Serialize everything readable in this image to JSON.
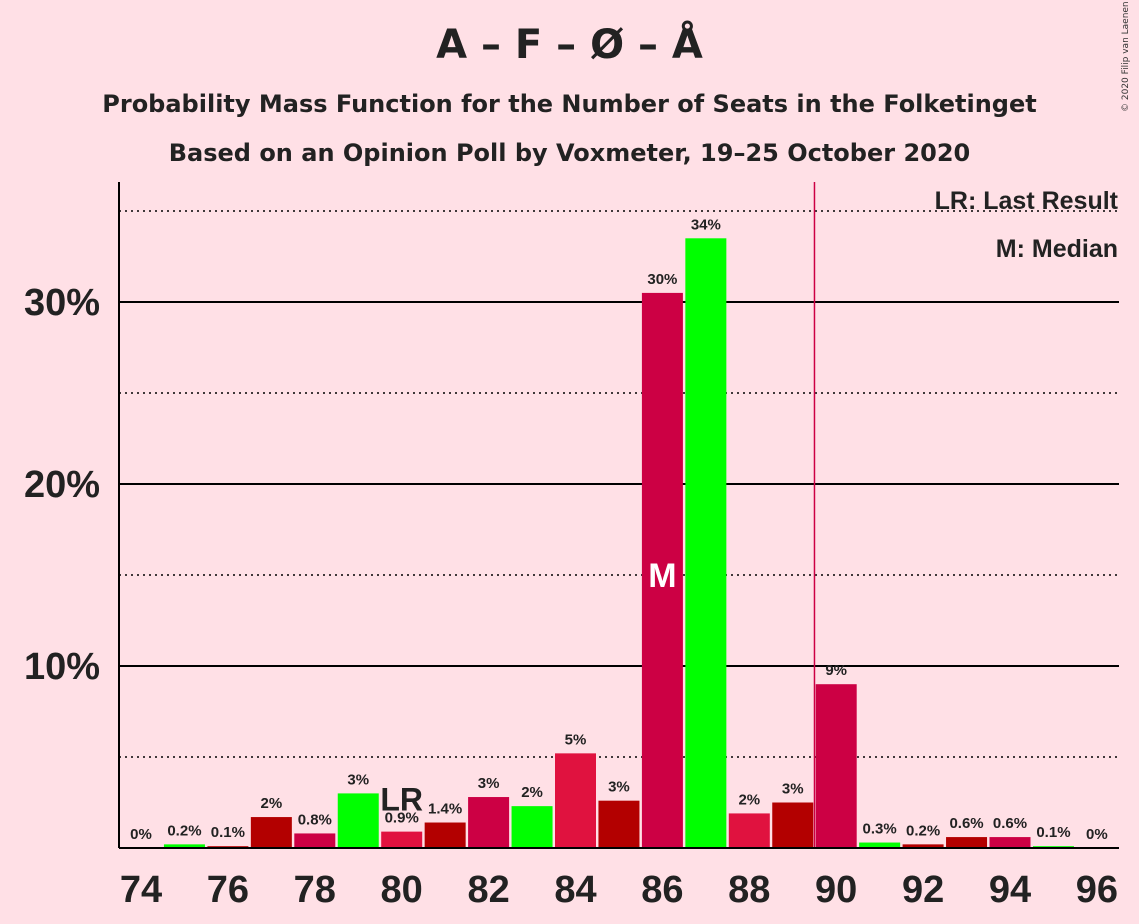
{
  "title": "A – F – Ø – Å",
  "subtitle": "Probability Mass Function for the Number of Seats in the Folketinget",
  "subtitle2": "Based on an Opinion Poll by Voxmeter, 19–25 October 2020",
  "copyright": "© 2020 Filip van Laenen",
  "legend": {
    "lr": "LR: Last Result",
    "m": "M: Median"
  },
  "markers": {
    "last_result_label": "LR",
    "median_label": "M"
  },
  "colors": {
    "background": "#ffe0e6",
    "A": "#cc0044",
    "F": "#00ff00",
    "O": "#b30000",
    "AA": "#e0123f",
    "majority_line": "#cc0044"
  },
  "chart_data": {
    "type": "bar",
    "x": [
      74,
      75,
      76,
      77,
      78,
      79,
      80,
      81,
      82,
      83,
      84,
      85,
      86,
      87,
      88,
      89,
      90,
      91,
      92,
      93,
      94,
      95,
      96
    ],
    "values": [
      0,
      0.2,
      0.1,
      1.7,
      0.8,
      3.0,
      0.9,
      1.4,
      2.8,
      2.3,
      5.2,
      2.6,
      30.5,
      33.5,
      1.9,
      2.5,
      9.0,
      0.3,
      0.2,
      0.6,
      0.6,
      0.1,
      0
    ],
    "labels": [
      "0%",
      "0.2%",
      "0.1%",
      "2%",
      "0.8%",
      "3%",
      "0.9%",
      "1.4%",
      "3%",
      "2%",
      "5%",
      "3%",
      "30%",
      "34%",
      "2%",
      "3%",
      "9%",
      "0.3%",
      "0.2%",
      "0.6%",
      "0.6%",
      "0.1%",
      "0%"
    ],
    "bar_colors": [
      "#cc0044",
      "#00ff00",
      "#b30000",
      "#b30000",
      "#cc0044",
      "#00ff00",
      "#e0123f",
      "#b30000",
      "#cc0044",
      "#00ff00",
      "#e0123f",
      "#b30000",
      "#cc0044",
      "#00ff00",
      "#e0123f",
      "#b30000",
      "#cc0044",
      "#00ff00",
      "#b30000",
      "#b30000",
      "#cc0044",
      "#00ff00",
      "#e0123f"
    ],
    "xticks": [
      "74",
      "76",
      "78",
      "80",
      "82",
      "84",
      "86",
      "88",
      "90",
      "92",
      "94",
      "96"
    ],
    "yticks": [
      "10%",
      "20%",
      "30%"
    ],
    "ylim": [
      0,
      36.5
    ],
    "last_result_seat": 80,
    "median_seat": 86,
    "majority_line_seat": 89.5,
    "grid": "solid at 10% steps, dotted at 5% steps"
  }
}
